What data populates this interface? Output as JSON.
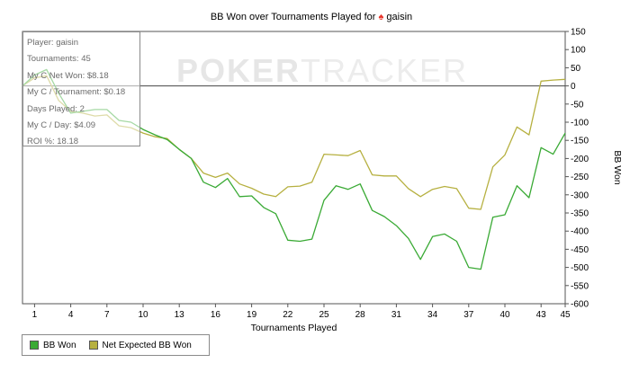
{
  "chart_data": {
    "type": "line",
    "title": "BB Won over Tournaments Played for",
    "player_name": "gaisin",
    "xlabel": "Tournaments Played",
    "ylabel": "BB Won",
    "x_ticks": [
      1,
      4,
      7,
      10,
      13,
      16,
      19,
      22,
      25,
      28,
      31,
      34,
      37,
      40,
      43,
      45
    ],
    "y_ticks": [
      150,
      100,
      50,
      0,
      -50,
      -100,
      -150,
      -200,
      -250,
      -300,
      -350,
      -400,
      -450,
      -500,
      -550,
      -600
    ],
    "ylim": [
      -600,
      150
    ],
    "xlim": [
      0,
      45
    ],
    "grid": false,
    "legend_position": "bottom-left",
    "x": [
      0,
      1,
      2,
      3,
      4,
      5,
      6,
      7,
      8,
      9,
      10,
      11,
      12,
      13,
      14,
      15,
      16,
      17,
      18,
      19,
      20,
      21,
      22,
      23,
      24,
      25,
      26,
      27,
      28,
      29,
      30,
      31,
      32,
      33,
      34,
      35,
      36,
      37,
      38,
      39,
      40,
      41,
      42,
      43,
      44,
      45
    ],
    "series": [
      {
        "name": "BB Won",
        "color": "#3aaa35",
        "values": [
          0,
          30,
          45,
          -20,
          -75,
          -70,
          -65,
          -65,
          -95,
          -100,
          -120,
          -135,
          -148,
          -175,
          -200,
          -265,
          -280,
          -255,
          -305,
          -303,
          -335,
          -352,
          -425,
          -428,
          -422,
          -315,
          -275,
          -285,
          -270,
          -343,
          -360,
          -385,
          -420,
          -478,
          -415,
          -408,
          -428,
          -500,
          -505,
          -362,
          -355,
          -275,
          -308,
          -170,
          -188,
          -130
        ]
      },
      {
        "name": "Net Expected BB Won",
        "color": "#b6b040",
        "values": [
          0,
          22,
          28,
          -40,
          -70,
          -75,
          -83,
          -80,
          -110,
          -115,
          -130,
          -140,
          -145,
          -175,
          -200,
          -240,
          -252,
          -240,
          -270,
          -282,
          -298,
          -305,
          -278,
          -276,
          -265,
          -188,
          -190,
          -192,
          -178,
          -245,
          -248,
          -248,
          -283,
          -305,
          -285,
          -277,
          -283,
          -337,
          -340,
          -223,
          -190,
          -113,
          -135,
          13,
          16,
          18
        ]
      }
    ]
  },
  "info_box": {
    "rows": [
      "Player: gaisin",
      "Tournaments: 45",
      "My C Net Won: $8.18",
      "My C / Tournament: $0.18",
      "Days Played: 2",
      "My C / Day: $4.09",
      "ROI %: 18.18"
    ]
  },
  "watermark": {
    "part1": "POKER",
    "part2": "TRACKER"
  },
  "legend": {
    "items": [
      {
        "label": "BB Won",
        "color": "#3aaa35"
      },
      {
        "label": "Net Expected BB Won",
        "color": "#b6b040"
      }
    ]
  }
}
